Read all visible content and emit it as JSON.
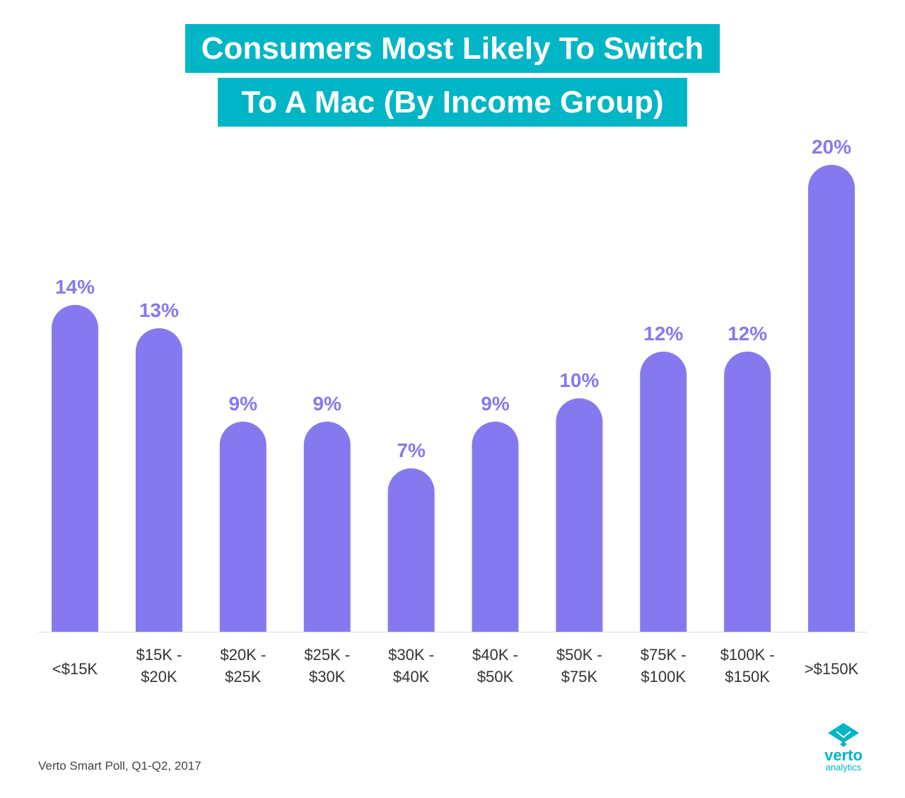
{
  "title_lines": [
    "Consumers Most Likely To Switch",
    "To A Mac (By Income Group)"
  ],
  "chart_data": {
    "type": "bar",
    "title": "Consumers Most Likely To Switch To A Mac (By Income Group)",
    "categories": [
      "<$15K",
      "$15K - $20K",
      "$20K - $25K",
      "$25K - $30K",
      "$30K - $40K",
      "$40K - $50K",
      "$50K - $75K",
      "$75K - $100K",
      "$100K - $150K",
      ">$150K"
    ],
    "category_lines": [
      [
        "<$15K"
      ],
      [
        "$15K -",
        "$20K"
      ],
      [
        "$20K -",
        "$25K"
      ],
      [
        "$25K -",
        "$30K"
      ],
      [
        "$30K -",
        "$40K"
      ],
      [
        "$40K -",
        "$50K"
      ],
      [
        "$50K -",
        "$75K"
      ],
      [
        "$75K -",
        "$100K"
      ],
      [
        "$100K -",
        "$150K"
      ],
      [
        ">$150K"
      ]
    ],
    "values": [
      14,
      13,
      9,
      9,
      7,
      9,
      10,
      12,
      12,
      20
    ],
    "data_labels": [
      "14%",
      "13%",
      "9%",
      "9%",
      "7%",
      "9%",
      "10%",
      "12%",
      "12%",
      "20%"
    ],
    "unit": "%",
    "grid": false,
    "bar_color": "#8679ef",
    "label_color": "#8679ef"
  },
  "source": "Verto Smart Poll, Q1-Q2, 2017",
  "logo": {
    "name": "verto",
    "sub": "analytics",
    "color": "#00b5c5"
  }
}
